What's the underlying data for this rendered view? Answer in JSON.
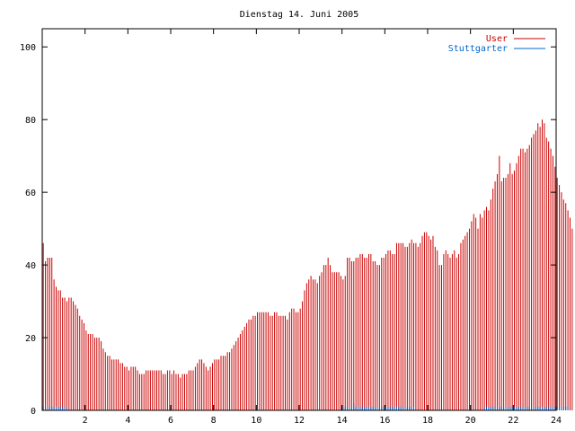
{
  "chart_data": {
    "type": "bar",
    "title": "Dienstag 14. Juni 2005",
    "xlabel": "",
    "ylabel": "",
    "xlim": [
      0,
      24
    ],
    "ylim": [
      0,
      105
    ],
    "x_ticks": [
      2,
      4,
      6,
      8,
      10,
      12,
      14,
      16,
      18,
      20,
      22,
      24
    ],
    "y_ticks": [
      0,
      20,
      40,
      60,
      80,
      100
    ],
    "grid": false,
    "legend_position": "top-right",
    "bin_hours": 0.1,
    "series": [
      {
        "name": "User",
        "color": "#cc0000",
        "start_hour": 0,
        "values": [
          46,
          41,
          42,
          42,
          42,
          36,
          34,
          33,
          33,
          31,
          31,
          30,
          31,
          31,
          30,
          29,
          28,
          26,
          25,
          24,
          22,
          21,
          21,
          21,
          20,
          20,
          20,
          19,
          17,
          16,
          15,
          15,
          14,
          14,
          14,
          14,
          13,
          13,
          12,
          12,
          11,
          12,
          12,
          12,
          11,
          10,
          10,
          10,
          11,
          11,
          11,
          11,
          11,
          11,
          11,
          11,
          10,
          10,
          11,
          11,
          10,
          11,
          10,
          10,
          9,
          10,
          10,
          10,
          11,
          11,
          11,
          12,
          13,
          14,
          14,
          13,
          12,
          11,
          12,
          13,
          14,
          14,
          14,
          15,
          15,
          15,
          16,
          16,
          17,
          18,
          19,
          20,
          21,
          22,
          23,
          24,
          25,
          25,
          26,
          26,
          27,
          27,
          27,
          27,
          27,
          27,
          26,
          26,
          27,
          27,
          26,
          26,
          26,
          26,
          25,
          27,
          28,
          28,
          27,
          27,
          28,
          30,
          33,
          35,
          36,
          37,
          36,
          36,
          35,
          37,
          38,
          40,
          40,
          42,
          40,
          38,
          38,
          38,
          38,
          37,
          36,
          37,
          42,
          42,
          41,
          41,
          42,
          42,
          43,
          43,
          42,
          42,
          43,
          43,
          41,
          41,
          40,
          40,
          42,
          42,
          43,
          44,
          44,
          43,
          43,
          46,
          46,
          46,
          46,
          45,
          45,
          46,
          47,
          46,
          46,
          45,
          46,
          48,
          49,
          49,
          48,
          47,
          48,
          45,
          44,
          40,
          40,
          43,
          44,
          43,
          42,
          43,
          44,
          42,
          43,
          46,
          47,
          48,
          49,
          50,
          52,
          54,
          53,
          50,
          54,
          53,
          55,
          56,
          55,
          58,
          61,
          63,
          65,
          70,
          63,
          64,
          64,
          65,
          68,
          65,
          66,
          68,
          70,
          72,
          72,
          71,
          72,
          73,
          75,
          76,
          77,
          79,
          78,
          80,
          79,
          75,
          74,
          72,
          70,
          67,
          64,
          62,
          60,
          58,
          57,
          55,
          53,
          50
        ]
      },
      {
        "name": "Stuttgarter",
        "color": "#0066cc",
        "start_hour": 0,
        "values": [
          1,
          1,
          1,
          1,
          1,
          1,
          1,
          1,
          1,
          1,
          1,
          1,
          0,
          0,
          0,
          0,
          0,
          0,
          0,
          0,
          0,
          0,
          0,
          0,
          0,
          0,
          0,
          0,
          0,
          0,
          0,
          0,
          0,
          0,
          0,
          0,
          0,
          0,
          0,
          0,
          0,
          0,
          0,
          0,
          0,
          0,
          0,
          0,
          0,
          0,
          0,
          0,
          0,
          0,
          0,
          0,
          0,
          0,
          0,
          0,
          0,
          0,
          0,
          0,
          0,
          0,
          0,
          0,
          0,
          0,
          0,
          0,
          0,
          0,
          0,
          0,
          0,
          0,
          0,
          0,
          0,
          0,
          0,
          0,
          0,
          0,
          0,
          0,
          0,
          0,
          0,
          0,
          0,
          0,
          0,
          0,
          0,
          0,
          0,
          0,
          0,
          0,
          0,
          0,
          0,
          0,
          0,
          0,
          0,
          0,
          0,
          0,
          0,
          0,
          0,
          0,
          0,
          0,
          0,
          0,
          0,
          0,
          0,
          0,
          0,
          0,
          0,
          0,
          0,
          0,
          0,
          0,
          0,
          0,
          0,
          0,
          0,
          0,
          0,
          0,
          1,
          1,
          1,
          1,
          1,
          2,
          1,
          1,
          1,
          1,
          1,
          1,
          1,
          1,
          1,
          1,
          1,
          1,
          1,
          1,
          1,
          1,
          1,
          1,
          1,
          1,
          1,
          1,
          1,
          1,
          1,
          1,
          1,
          1,
          0,
          0,
          0,
          0,
          0,
          0,
          0,
          0,
          0,
          0,
          0,
          0,
          0,
          0,
          0,
          0,
          0,
          0,
          0,
          0,
          0,
          0,
          0,
          0,
          0,
          0,
          0,
          0,
          0,
          0,
          0,
          0,
          1,
          1,
          1,
          1,
          1,
          1,
          1,
          1,
          1,
          1,
          1,
          1,
          1,
          1,
          1,
          1,
          1,
          1,
          1,
          1,
          1,
          1,
          1,
          1,
          1,
          1,
          1,
          1,
          1,
          1,
          1,
          1,
          1,
          1,
          1,
          1,
          1,
          1,
          1,
          1
        ]
      }
    ]
  }
}
